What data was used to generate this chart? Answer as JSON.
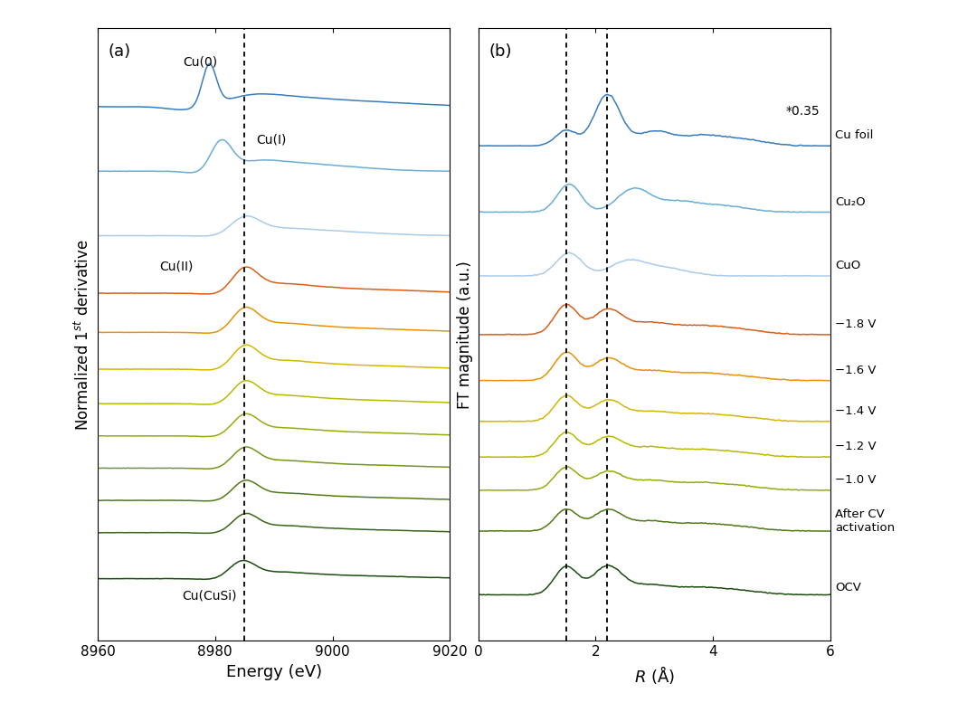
{
  "panel_a_label": "(a)",
  "panel_b_label": "(b)",
  "xlabel_a": "Energy (eV)",
  "ylabel_a": "Normalized 1$^{st}$ derivative",
  "xlabel_b": "$R$ (Å)",
  "ylabel_b": "FT magnitude (a.u.)",
  "xlim_a": [
    8960,
    9020
  ],
  "xlim_b": [
    0,
    6
  ],
  "xticks_a": [
    8960,
    8980,
    9000,
    9020
  ],
  "xticks_b": [
    0,
    2,
    4,
    6
  ],
  "dashed_line_a": 8985,
  "dashed_lines_b": [
    1.5,
    2.2
  ],
  "annotation_b": "*0.35",
  "colors_a": [
    "#3a7dbf",
    "#6aaed6",
    "#aacce8",
    "#d9601a",
    "#e8930a",
    "#d4b800",
    "#b8bb00",
    "#96ac10",
    "#739818",
    "#527a18",
    "#3a6518",
    "#1e4d12"
  ],
  "colors_b": [
    "#3a7dbf",
    "#6aaed6",
    "#aacce8",
    "#d9601a",
    "#e8930a",
    "#d4b800",
    "#b8bb00",
    "#96ac10",
    "#527a18",
    "#1e4d12"
  ],
  "labels_b": [
    "Cu foil",
    "Cu₂O",
    "CuO",
    "−1.8 V",
    "−1.6 V",
    "−1.4 V",
    "−1.2 V",
    "−1.0 V",
    "After CV\nactivation",
    "OCV"
  ],
  "figsize": [
    10.8,
    7.87
  ],
  "dpi": 100
}
